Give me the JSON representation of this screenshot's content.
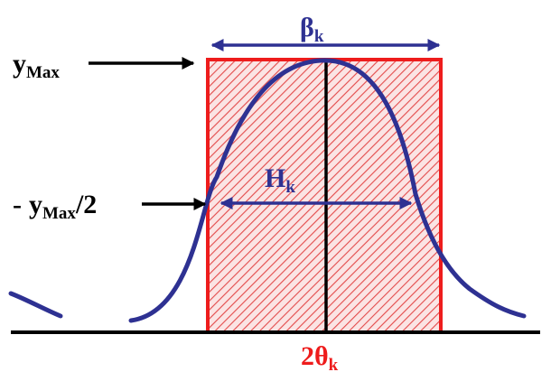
{
  "labels": {
    "beta": "β",
    "beta_sub": "k",
    "ymax": "y",
    "ymax_sub": "Max",
    "half_prefix": "y",
    "half_sub": "Max",
    "half_suffix": "/2",
    "half_dash": "-",
    "h": "H",
    "h_sub": "k",
    "theta": "2θ",
    "theta_sub": "k"
  },
  "colors": {
    "rect_stroke": "#ee1c1c",
    "hatch": "#e34a4a",
    "curve": "#2e3192",
    "arrow_blue": "#2e3192",
    "black": "#000000",
    "label_red": "#ee1c1c",
    "label_blue": "#2e3192"
  }
}
